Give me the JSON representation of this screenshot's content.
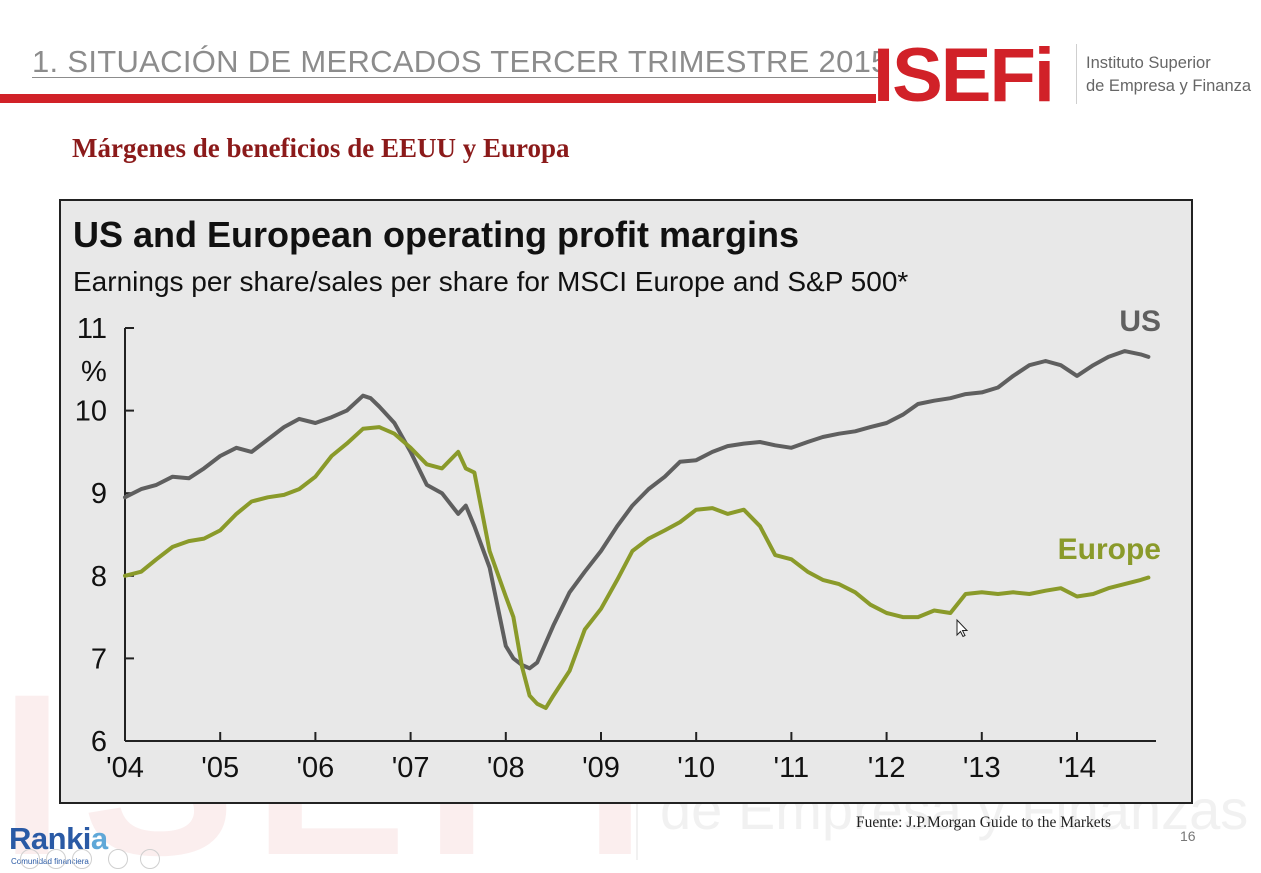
{
  "header": {
    "title": "1. SITUACIÓN DE MERCADOS TERCER TRIMESTRE 2015",
    "logo_text": "ISEFi",
    "logo_sub_line1": "Instituto Superior",
    "logo_sub_line2": "de Empresa y Finanza"
  },
  "subtitle": "Márgenes de beneficios de EEUU y Europa",
  "chart_data": {
    "type": "line",
    "title": "US and European operating profit margins",
    "subtitle": "Earnings per share/sales per share for MSCI Europe and S&P 500*",
    "ylabel": "%",
    "xlabel": "",
    "ylim": [
      6,
      11
    ],
    "xlim": [
      2004,
      2014.83
    ],
    "yticks": [
      6,
      7,
      8,
      9,
      10,
      11
    ],
    "xticks": [
      2004,
      2005,
      2006,
      2007,
      2008,
      2009,
      2010,
      2011,
      2012,
      2013,
      2014
    ],
    "xtick_labels": [
      "'04",
      "'05",
      "'06",
      "'07",
      "'08",
      "'09",
      "'10",
      "'11",
      "'12",
      "'13",
      "'14"
    ],
    "grid": false,
    "series": [
      {
        "name": "US",
        "color": "#5f5f5f",
        "x": [
          2004.0,
          2004.17,
          2004.33,
          2004.5,
          2004.67,
          2004.83,
          2005.0,
          2005.17,
          2005.33,
          2005.5,
          2005.67,
          2005.83,
          2006.0,
          2006.17,
          2006.33,
          2006.5,
          2006.58,
          2006.67,
          2006.83,
          2007.0,
          2007.17,
          2007.33,
          2007.5,
          2007.58,
          2007.67,
          2007.83,
          2008.0,
          2008.08,
          2008.17,
          2008.25,
          2008.33,
          2008.5,
          2008.67,
          2008.83,
          2009.0,
          2009.17,
          2009.33,
          2009.5,
          2009.67,
          2009.83,
          2010.0,
          2010.17,
          2010.33,
          2010.5,
          2010.67,
          2010.83,
          2011.0,
          2011.17,
          2011.33,
          2011.5,
          2011.67,
          2011.83,
          2012.0,
          2012.17,
          2012.33,
          2012.5,
          2012.67,
          2012.83,
          2013.0,
          2013.17,
          2013.33,
          2013.5,
          2013.67,
          2013.83,
          2014.0,
          2014.17,
          2014.33,
          2014.5,
          2014.67,
          2014.75
        ],
        "values": [
          8.95,
          9.05,
          9.1,
          9.2,
          9.18,
          9.3,
          9.45,
          9.55,
          9.5,
          9.65,
          9.8,
          9.9,
          9.85,
          9.92,
          10.0,
          10.18,
          10.15,
          10.05,
          9.85,
          9.5,
          9.1,
          9.0,
          8.75,
          8.85,
          8.6,
          8.1,
          7.15,
          7.0,
          6.92,
          6.88,
          6.95,
          7.4,
          7.8,
          8.05,
          8.3,
          8.6,
          8.85,
          9.05,
          9.2,
          9.38,
          9.4,
          9.5,
          9.57,
          9.6,
          9.62,
          9.58,
          9.55,
          9.62,
          9.68,
          9.72,
          9.75,
          9.8,
          9.85,
          9.95,
          10.08,
          10.12,
          10.15,
          10.2,
          10.22,
          10.28,
          10.42,
          10.55,
          10.6,
          10.55,
          10.42,
          10.55,
          10.65,
          10.72,
          10.68,
          10.65
        ]
      },
      {
        "name": "Europe",
        "color": "#8a9a2a",
        "x": [
          2004.0,
          2004.17,
          2004.33,
          2004.5,
          2004.67,
          2004.83,
          2005.0,
          2005.17,
          2005.33,
          2005.5,
          2005.67,
          2005.83,
          2006.0,
          2006.17,
          2006.33,
          2006.5,
          2006.67,
          2006.83,
          2007.0,
          2007.17,
          2007.33,
          2007.5,
          2007.58,
          2007.67,
          2007.83,
          2008.0,
          2008.08,
          2008.17,
          2008.25,
          2008.33,
          2008.42,
          2008.5,
          2008.67,
          2008.83,
          2009.0,
          2009.17,
          2009.33,
          2009.5,
          2009.67,
          2009.83,
          2010.0,
          2010.17,
          2010.33,
          2010.5,
          2010.67,
          2010.83,
          2011.0,
          2011.17,
          2011.33,
          2011.5,
          2011.67,
          2011.83,
          2012.0,
          2012.17,
          2012.33,
          2012.5,
          2012.67,
          2012.83,
          2013.0,
          2013.17,
          2013.33,
          2013.5,
          2013.67,
          2013.83,
          2014.0,
          2014.17,
          2014.33,
          2014.5,
          2014.67,
          2014.75
        ],
        "values": [
          8.0,
          8.05,
          8.2,
          8.35,
          8.42,
          8.45,
          8.55,
          8.75,
          8.9,
          8.95,
          8.98,
          9.05,
          9.2,
          9.45,
          9.6,
          9.78,
          9.8,
          9.72,
          9.55,
          9.35,
          9.3,
          9.5,
          9.3,
          9.25,
          8.3,
          7.75,
          7.5,
          6.9,
          6.55,
          6.45,
          6.4,
          6.55,
          6.85,
          7.35,
          7.6,
          7.95,
          8.3,
          8.45,
          8.55,
          8.65,
          8.8,
          8.82,
          8.75,
          8.8,
          8.6,
          8.25,
          8.2,
          8.05,
          7.95,
          7.9,
          7.8,
          7.65,
          7.55,
          7.5,
          7.5,
          7.58,
          7.55,
          7.78,
          7.8,
          7.78,
          7.8,
          7.78,
          7.82,
          7.85,
          7.75,
          7.78,
          7.85,
          7.9,
          7.95,
          7.98
        ]
      }
    ],
    "annotations": [
      "US",
      "Europe"
    ]
  },
  "footer": {
    "source": "Fuente: J.P.Morgan Guide to the Markets",
    "page_number": "16",
    "rankia_brand": "Ranki",
    "rankia_brand_a": "a",
    "rankia_sub": "Comunidad financiera"
  },
  "watermark": {
    "letters": "ISEFi",
    "sub": "de Empresa y Finanzas"
  }
}
